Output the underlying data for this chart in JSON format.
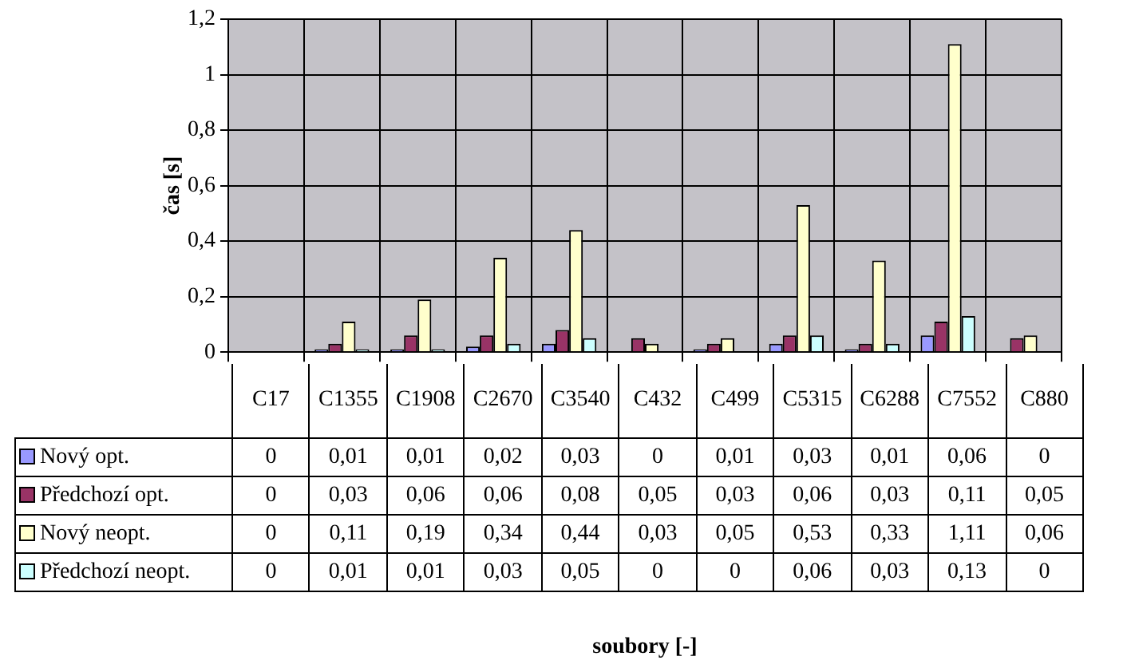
{
  "chart_data": {
    "type": "bar",
    "ylabel": "čas [s]",
    "annotations": [
      "soubory [-]"
    ],
    "categories": [
      "C17",
      "C1355",
      "C1908",
      "C2670",
      "C3540",
      "C432",
      "C499",
      "C5315",
      "C6288",
      "C7552",
      "C880"
    ],
    "series": [
      {
        "name": "Nový opt.",
        "color": "#9999ff",
        "values": [
          0,
          0.01,
          0.01,
          0.02,
          0.03,
          0,
          0.01,
          0.03,
          0.01,
          0.06,
          0
        ],
        "value_labels": [
          "0",
          "0,01",
          "0,01",
          "0,02",
          "0,03",
          "0",
          "0,01",
          "0,03",
          "0,01",
          "0,06",
          "0"
        ]
      },
      {
        "name": "Předchozí opt.",
        "color": "#993366",
        "values": [
          0,
          0.03,
          0.06,
          0.06,
          0.08,
          0.05,
          0.03,
          0.06,
          0.03,
          0.11,
          0.05
        ],
        "value_labels": [
          "0",
          "0,03",
          "0,06",
          "0,06",
          "0,08",
          "0,05",
          "0,03",
          "0,06",
          "0,03",
          "0,11",
          "0,05"
        ]
      },
      {
        "name": "Nový neopt.",
        "color": "#ffffcc",
        "values": [
          0,
          0.11,
          0.19,
          0.34,
          0.44,
          0.03,
          0.05,
          0.53,
          0.33,
          1.11,
          0.06
        ],
        "value_labels": [
          "0",
          "0,11",
          "0,19",
          "0,34",
          "0,44",
          "0,03",
          "0,05",
          "0,53",
          "0,33",
          "1,11",
          "0,06"
        ]
      },
      {
        "name": "Předchozí neopt.",
        "color": "#ccffff",
        "values": [
          0,
          0.01,
          0.01,
          0.03,
          0.05,
          0,
          0,
          0.06,
          0.03,
          0.13,
          0
        ],
        "value_labels": [
          "0",
          "0,01",
          "0,01",
          "0,03",
          "0,05",
          "0",
          "0",
          "0,06",
          "0,03",
          "0,13",
          "0"
        ]
      }
    ],
    "ylim": [
      0,
      1.2
    ],
    "yticks": [
      {
        "value": 0,
        "label": "0"
      },
      {
        "value": 0.2,
        "label": "0,2"
      },
      {
        "value": 0.4,
        "label": "0,4"
      },
      {
        "value": 0.6,
        "label": "0,6"
      },
      {
        "value": 0.8,
        "label": "0,8"
      },
      {
        "value": 1,
        "label": "1"
      },
      {
        "value": 1.2,
        "label": "1,2"
      }
    ],
    "grid": true,
    "legend": "bottom"
  }
}
